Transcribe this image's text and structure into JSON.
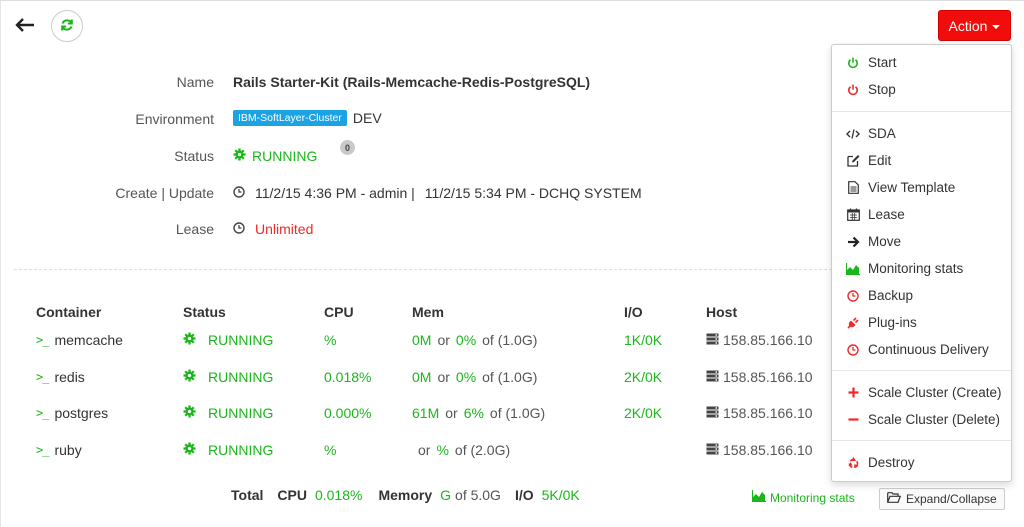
{
  "header": {
    "action_label": "Action"
  },
  "details": {
    "name_label": "Name",
    "name_value": "Rails Starter-Kit (Rails-Memcache-Redis-PostgreSQL)",
    "env_label": "Environment",
    "env_badge": "IBM-SoftLayer-Cluster",
    "env_value": "DEV",
    "status_label": "Status",
    "status_value": "RUNNING",
    "status_count": "0",
    "create_label": "Create | Update",
    "create_value": "11/2/15 4:36 PM - admin |",
    "update_value": "11/2/15 5:34 PM - DCHQ SYSTEM",
    "lease_label": "Lease",
    "lease_value": "Unlimited"
  },
  "table": {
    "headers": {
      "container": "Container",
      "status": "Status",
      "cpu": "CPU",
      "mem": "Mem",
      "io": "I/O",
      "host": "Host"
    },
    "prompt": ">_",
    "rows": [
      {
        "name": "memcache",
        "status": "RUNNING",
        "cpu": "%",
        "mem_used": "0M",
        "mem_or": "or",
        "mem_pct": "0%",
        "mem_total": "of (1.0G)",
        "io": "1K/0K",
        "host": "158.85.166.10"
      },
      {
        "name": "redis",
        "status": "RUNNING",
        "cpu": "0.018%",
        "mem_used": "0M",
        "mem_or": "or",
        "mem_pct": "0%",
        "mem_total": "of (1.0G)",
        "io": "2K/0K",
        "host": "158.85.166.10"
      },
      {
        "name": "postgres",
        "status": "RUNNING",
        "cpu": "0.000%",
        "mem_used": "61M",
        "mem_or": "or",
        "mem_pct": "6%",
        "mem_total": "of (1.0G)",
        "io": "2K/0K",
        "host": "158.85.166.10"
      },
      {
        "name": "ruby",
        "status": "RUNNING",
        "cpu": "%",
        "mem_used": "",
        "mem_or": "or",
        "mem_pct": "%",
        "mem_total": "of (2.0G)",
        "io": "",
        "host": "158.85.166.10"
      }
    ]
  },
  "footer": {
    "total_label": "Total",
    "cpu_label": "CPU",
    "cpu_value": "0.018%",
    "memory_label": "Memory",
    "memory_value": "G",
    "memory_total": "of 5.0G",
    "io_label": "I/O",
    "io_value": "5K/0K",
    "monitoring_label": "Monitoring stats",
    "expand_label": "Expand/Collapse"
  },
  "menu": {
    "start": "Start",
    "stop": "Stop",
    "sda": "SDA",
    "edit": "Edit",
    "view_template": "View Template",
    "lease": "Lease",
    "move": "Move",
    "monitoring": "Monitoring stats",
    "backup": "Backup",
    "plugins": "Plug-ins",
    "cd": "Continuous Delivery",
    "scale_create": "Scale Cluster (Create)",
    "scale_delete": "Scale Cluster (Delete)",
    "destroy": "Destroy"
  },
  "colors": {
    "accent_red": "#f20d0d",
    "running_green": "#1bb61b",
    "badge_blue": "#1ba3e3"
  }
}
